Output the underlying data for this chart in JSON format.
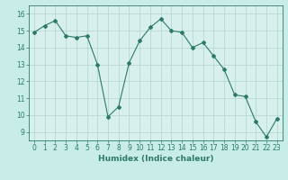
{
  "x": [
    0,
    1,
    2,
    3,
    4,
    5,
    6,
    7,
    8,
    9,
    10,
    11,
    12,
    13,
    14,
    15,
    16,
    17,
    18,
    19,
    20,
    21,
    22,
    23
  ],
  "y": [
    14.9,
    15.3,
    15.6,
    14.7,
    14.6,
    14.7,
    13.0,
    9.9,
    10.5,
    13.1,
    14.4,
    15.2,
    15.7,
    15.0,
    14.9,
    14.0,
    14.3,
    13.5,
    12.7,
    11.2,
    11.1,
    9.6,
    8.7,
    9.8
  ],
  "line_color": "#2d7a6a",
  "marker": "D",
  "marker_size": 2.0,
  "bg_color": "#c8ece8",
  "plot_bg_color": "#d8f0ec",
  "grid_color": "#b8d8d4",
  "xlabel": "Humidex (Indice chaleur)",
  "xlim": [
    -0.5,
    23.5
  ],
  "ylim": [
    8.5,
    16.5
  ],
  "yticks": [
    9,
    10,
    11,
    12,
    13,
    14,
    15,
    16
  ],
  "xticks": [
    0,
    1,
    2,
    3,
    4,
    5,
    6,
    7,
    8,
    9,
    10,
    11,
    12,
    13,
    14,
    15,
    16,
    17,
    18,
    19,
    20,
    21,
    22,
    23
  ],
  "tick_fontsize": 5.5,
  "xlabel_fontsize": 6.5
}
